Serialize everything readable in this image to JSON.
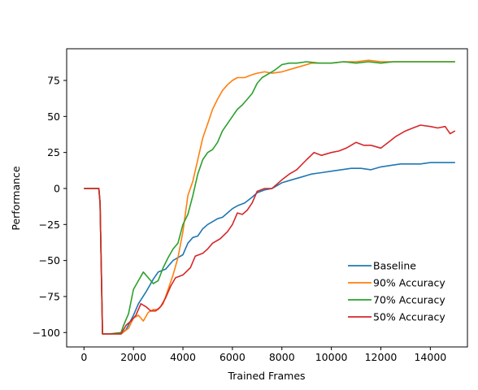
{
  "chart_data": {
    "type": "line",
    "title": "",
    "xlabel": "Trained Frames",
    "ylabel": "Performance",
    "xlim": [
      -700,
      15500
    ],
    "ylim": [
      -110,
      97
    ],
    "xticks": [
      0,
      2000,
      4000,
      6000,
      8000,
      10000,
      12000,
      14000
    ],
    "xtick_labels": [
      "0",
      "2000",
      "4000",
      "6000",
      "8000",
      "10000",
      "12000",
      "14000"
    ],
    "yticks": [
      -100,
      -75,
      -50,
      -25,
      0,
      25,
      50,
      75
    ],
    "ytick_labels": [
      "−100",
      "−75",
      "−50",
      "−25",
      "0",
      "25",
      "50",
      "75"
    ],
    "grid": false,
    "legend_position": "lower-right",
    "series": [
      {
        "name": "Baseline",
        "color": "#1f77b4",
        "points": [
          [
            0,
            0
          ],
          [
            600,
            0
          ],
          [
            650,
            -10
          ],
          [
            750,
            -101
          ],
          [
            1000,
            -101
          ],
          [
            1500,
            -101
          ],
          [
            1700,
            -98
          ],
          [
            2000,
            -88
          ],
          [
            2200,
            -80
          ],
          [
            2500,
            -72
          ],
          [
            2800,
            -63
          ],
          [
            3000,
            -58
          ],
          [
            3300,
            -56
          ],
          [
            3600,
            -50
          ],
          [
            3800,
            -48
          ],
          [
            4000,
            -46
          ],
          [
            4200,
            -38
          ],
          [
            4400,
            -34
          ],
          [
            4600,
            -33
          ],
          [
            4800,
            -28
          ],
          [
            5000,
            -25
          ],
          [
            5200,
            -23
          ],
          [
            5400,
            -21
          ],
          [
            5600,
            -20
          ],
          [
            5800,
            -17
          ],
          [
            6000,
            -14
          ],
          [
            6200,
            -12
          ],
          [
            6500,
            -10
          ],
          [
            6800,
            -6
          ],
          [
            7000,
            -3
          ],
          [
            7300,
            -1
          ],
          [
            7600,
            0
          ],
          [
            8000,
            4
          ],
          [
            8400,
            6
          ],
          [
            8800,
            8
          ],
          [
            9200,
            10
          ],
          [
            9600,
            11
          ],
          [
            10000,
            12
          ],
          [
            10400,
            13
          ],
          [
            10800,
            14
          ],
          [
            11200,
            14
          ],
          [
            11600,
            13
          ],
          [
            12000,
            15
          ],
          [
            12400,
            16
          ],
          [
            12800,
            17
          ],
          [
            13200,
            17
          ],
          [
            13600,
            17
          ],
          [
            14000,
            18
          ],
          [
            14400,
            18
          ],
          [
            14800,
            18
          ],
          [
            15000,
            18
          ]
        ]
      },
      {
        "name": "90% Accuracy",
        "color": "#ff7f0e",
        "points": [
          [
            0,
            0
          ],
          [
            600,
            0
          ],
          [
            650,
            -10
          ],
          [
            750,
            -101
          ],
          [
            1000,
            -101
          ],
          [
            1500,
            -101
          ],
          [
            1800,
            -97
          ],
          [
            2000,
            -90
          ],
          [
            2200,
            -88
          ],
          [
            2400,
            -92
          ],
          [
            2600,
            -86
          ],
          [
            2800,
            -84
          ],
          [
            3000,
            -84
          ],
          [
            3200,
            -80
          ],
          [
            3400,
            -70
          ],
          [
            3600,
            -60
          ],
          [
            3800,
            -48
          ],
          [
            4000,
            -30
          ],
          [
            4200,
            -5
          ],
          [
            4400,
            5
          ],
          [
            4600,
            20
          ],
          [
            4800,
            35
          ],
          [
            5000,
            45
          ],
          [
            5200,
            55
          ],
          [
            5400,
            62
          ],
          [
            5600,
            68
          ],
          [
            5800,
            72
          ],
          [
            6000,
            75
          ],
          [
            6200,
            77
          ],
          [
            6500,
            77
          ],
          [
            6800,
            79
          ],
          [
            7000,
            80
          ],
          [
            7300,
            81
          ],
          [
            7600,
            80
          ],
          [
            8000,
            81
          ],
          [
            8400,
            83
          ],
          [
            8800,
            85
          ],
          [
            9200,
            87
          ],
          [
            9600,
            87
          ],
          [
            10000,
            87
          ],
          [
            10500,
            88
          ],
          [
            11000,
            88
          ],
          [
            11500,
            89
          ],
          [
            12000,
            88
          ],
          [
            12500,
            88
          ],
          [
            13000,
            88
          ],
          [
            13500,
            88
          ],
          [
            14000,
            88
          ],
          [
            14500,
            88
          ],
          [
            15000,
            88
          ]
        ]
      },
      {
        "name": "70% Accuracy",
        "color": "#2ca02c",
        "points": [
          [
            0,
            0
          ],
          [
            600,
            0
          ],
          [
            650,
            -10
          ],
          [
            750,
            -101
          ],
          [
            1000,
            -101
          ],
          [
            1500,
            -100
          ],
          [
            1600,
            -95
          ],
          [
            1800,
            -87
          ],
          [
            2000,
            -70
          ],
          [
            2200,
            -64
          ],
          [
            2400,
            -58
          ],
          [
            2600,
            -62
          ],
          [
            2800,
            -66
          ],
          [
            3000,
            -64
          ],
          [
            3200,
            -55
          ],
          [
            3400,
            -48
          ],
          [
            3600,
            -42
          ],
          [
            3800,
            -38
          ],
          [
            4000,
            -25
          ],
          [
            4200,
            -18
          ],
          [
            4400,
            -5
          ],
          [
            4600,
            10
          ],
          [
            4800,
            20
          ],
          [
            5000,
            25
          ],
          [
            5200,
            27
          ],
          [
            5400,
            32
          ],
          [
            5600,
            40
          ],
          [
            5800,
            45
          ],
          [
            6000,
            50
          ],
          [
            6200,
            55
          ],
          [
            6400,
            58
          ],
          [
            6600,
            62
          ],
          [
            6800,
            66
          ],
          [
            7000,
            73
          ],
          [
            7200,
            77
          ],
          [
            7400,
            79
          ],
          [
            7700,
            82
          ],
          [
            8000,
            86
          ],
          [
            8300,
            87
          ],
          [
            8600,
            87
          ],
          [
            9000,
            88
          ],
          [
            9500,
            87
          ],
          [
            10000,
            87
          ],
          [
            10500,
            88
          ],
          [
            11000,
            87
          ],
          [
            11500,
            88
          ],
          [
            12000,
            87
          ],
          [
            12500,
            88
          ],
          [
            13000,
            88
          ],
          [
            13500,
            88
          ],
          [
            14000,
            88
          ],
          [
            14500,
            88
          ],
          [
            15000,
            88
          ]
        ]
      },
      {
        "name": "50% Accuracy",
        "color": "#d62728",
        "points": [
          [
            0,
            0
          ],
          [
            600,
            0
          ],
          [
            650,
            -10
          ],
          [
            750,
            -101
          ],
          [
            1000,
            -101
          ],
          [
            1500,
            -101
          ],
          [
            1700,
            -95
          ],
          [
            1900,
            -92
          ],
          [
            2100,
            -88
          ],
          [
            2300,
            -80
          ],
          [
            2500,
            -82
          ],
          [
            2700,
            -85
          ],
          [
            2900,
            -85
          ],
          [
            3100,
            -82
          ],
          [
            3300,
            -76
          ],
          [
            3500,
            -68
          ],
          [
            3700,
            -62
          ],
          [
            4000,
            -60
          ],
          [
            4300,
            -55
          ],
          [
            4500,
            -47
          ],
          [
            4800,
            -45
          ],
          [
            5000,
            -42
          ],
          [
            5200,
            -38
          ],
          [
            5500,
            -35
          ],
          [
            5800,
            -30
          ],
          [
            6000,
            -25
          ],
          [
            6200,
            -17
          ],
          [
            6400,
            -18
          ],
          [
            6600,
            -15
          ],
          [
            6800,
            -10
          ],
          [
            7000,
            -2
          ],
          [
            7300,
            0
          ],
          [
            7600,
            0
          ],
          [
            8000,
            6
          ],
          [
            8300,
            10
          ],
          [
            8600,
            13
          ],
          [
            9000,
            20
          ],
          [
            9300,
            25
          ],
          [
            9600,
            23
          ],
          [
            10000,
            25
          ],
          [
            10300,
            26
          ],
          [
            10600,
            28
          ],
          [
            11000,
            32
          ],
          [
            11300,
            30
          ],
          [
            11600,
            30
          ],
          [
            12000,
            28
          ],
          [
            12300,
            32
          ],
          [
            12600,
            36
          ],
          [
            13000,
            40
          ],
          [
            13300,
            42
          ],
          [
            13600,
            44
          ],
          [
            14000,
            43
          ],
          [
            14300,
            42
          ],
          [
            14600,
            43
          ],
          [
            14800,
            38
          ],
          [
            15000,
            40
          ]
        ]
      }
    ]
  }
}
